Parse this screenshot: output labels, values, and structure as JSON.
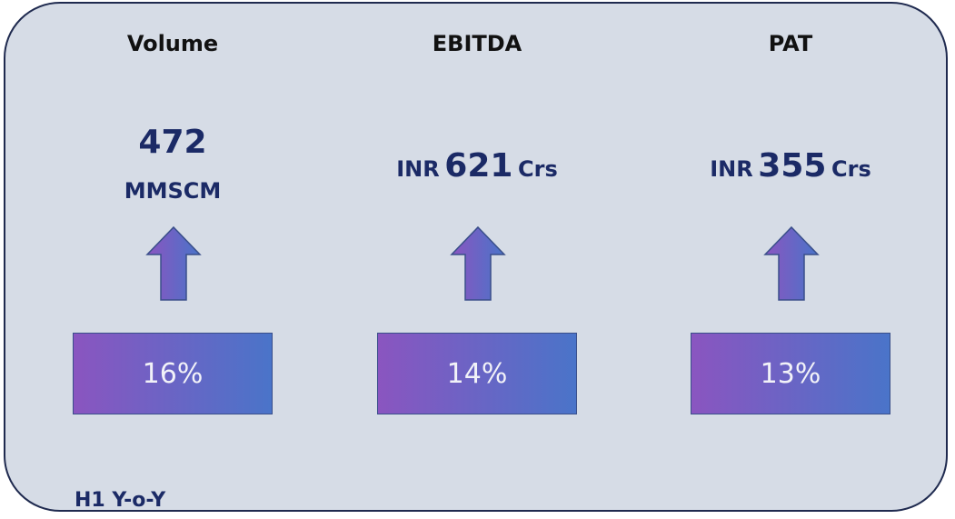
{
  "cards": [
    {
      "title": "Volume",
      "value": "472",
      "unit": "MMSCM",
      "change": "16%"
    },
    {
      "title": "EBITDA",
      "prefix": "INR",
      "value": "621",
      "unit": "Crs",
      "change": "14%"
    },
    {
      "title": "PAT",
      "prefix": "INR",
      "value": "355",
      "unit": "Crs",
      "change": "13%"
    }
  ],
  "footer": "H1 Y-o-Y"
}
